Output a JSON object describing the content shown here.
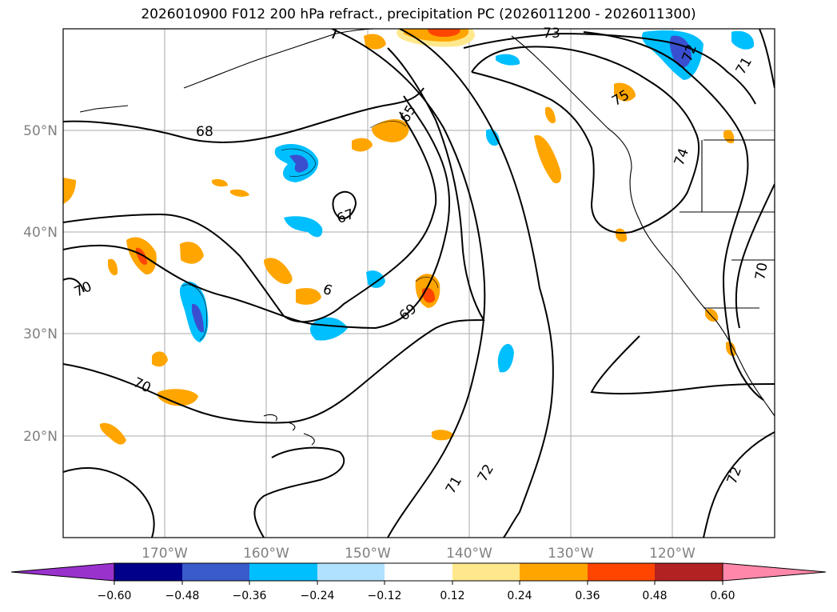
{
  "title": "2026010900 F012 200 hPa refract., precipitation PC (2026011200 - 2026011300)",
  "latitude_labels": [
    "20°N",
    "30°N",
    "40°N",
    "50°N"
  ],
  "longitude_labels": [
    "170°W",
    "160°W",
    "150°W",
    "140°W",
    "130°W",
    "120°W"
  ],
  "contour_labels": [
    "68",
    "67",
    "70",
    "6",
    "69",
    "70",
    "71",
    "72",
    "73",
    "72",
    "71",
    "75",
    "74",
    "70",
    "72",
    "65"
  ],
  "colorbar": {
    "tick_labels": [
      "−0.60",
      "−0.48",
      "−0.36",
      "−0.24",
      "−0.12",
      "0.12",
      "0.24",
      "0.36",
      "0.48",
      "0.60"
    ],
    "colors": [
      "#9932cc",
      "#00008b",
      "#3a5bcc",
      "#00bfff",
      "#b0e2ff",
      "#ffffff",
      "#ffe88c",
      "#ffa500",
      "#ff4500",
      "#b22222",
      "#ff88aa"
    ]
  },
  "colors": {
    "negative_strong": "#3a4fcf",
    "negative": "#00bfff",
    "negative_light": "#b0e2ff",
    "positive_light": "#ffe88c",
    "positive": "#ffa500",
    "positive_strong": "#ff4500",
    "grid": "#aaaaaa",
    "contour": "#000000"
  }
}
